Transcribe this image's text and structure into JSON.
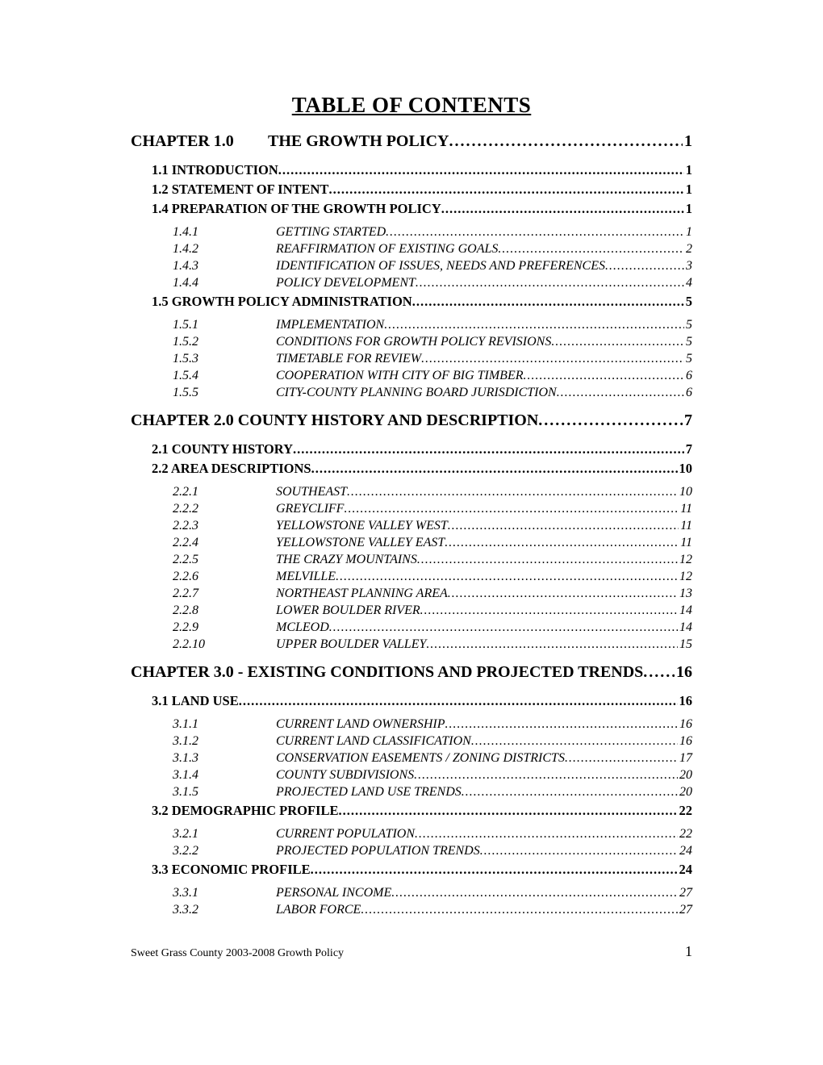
{
  "title": "TABLE OF CONTENTS",
  "footer": {
    "text": "Sweet Grass County 2003-2008 Growth Policy",
    "page": "1"
  },
  "ch1": {
    "num": "CHAPTER 1.0",
    "label": "THE GROWTH POLICY ",
    "page": " 1",
    "s11": {
      "label": "1.1 INTRODUCTION",
      "page": "1"
    },
    "s12": {
      "label": "1.2 STATEMENT OF INTENT",
      "page": "1"
    },
    "s14": {
      "label": "1.4 PREPARATION OF THE GROWTH POLICY ",
      "page": "1"
    },
    "s14subs": [
      {
        "num": "1.4.1",
        "label": "GETTING STARTED ",
        "page": "1"
      },
      {
        "num": "1.4.2",
        "label": "REAFFIRMATION OF EXISTING GOALS",
        "page": "2"
      },
      {
        "num": "1.4.3",
        "label": "IDENTIFICATION OF ISSUES,  NEEDS AND PREFERENCES",
        "page": "3"
      },
      {
        "num": "1.4.4",
        "label": "POLICY DEVELOPMENT",
        "page": "4"
      }
    ],
    "s15": {
      "label": "1.5 GROWTH POLICY ADMINISTRATION",
      "page": "5"
    },
    "s15subs": [
      {
        "num": "1.5.1",
        "label": "IMPLEMENTATION",
        "page": "5"
      },
      {
        "num": "1.5.2",
        "label": "CONDITIONS FOR GROWTH POLICY REVISIONS ",
        "page": "5"
      },
      {
        "num": "1.5.3",
        "label": "TIMETABLE FOR REVIEW",
        "page": "5"
      },
      {
        "num": "1.5.4",
        "label": "COOPERATION WITH CITY OF BIG TIMBER ",
        "page": "6"
      },
      {
        "num": "1.5.5",
        "label": "CITY-COUNTY PLANNING BOARD JURISDICTION ",
        "page": "6"
      }
    ]
  },
  "ch2": {
    "label": "CHAPTER 2.0 COUNTY HISTORY AND DESCRIPTION ",
    "page": " 7",
    "s21": {
      "label": "2.1 COUNTY HISTORY",
      "page": "7"
    },
    "s22": {
      "label": "2.2 AREA DESCRIPTIONS",
      "page": "10"
    },
    "s22subs": [
      {
        "num": "2.2.1",
        "label": "SOUTHEAST",
        "page": "10"
      },
      {
        "num": "2.2.2",
        "label": "GREYCLIFF",
        "page": "11"
      },
      {
        "num": "2.2.3",
        "label": "YELLOWSTONE VALLEY WEST",
        "page": "11"
      },
      {
        "num": "2.2.4",
        "label": "YELLOWSTONE VALLEY EAST",
        "page": "11"
      },
      {
        "num": "2.2.5",
        "label": "THE CRAZY MOUNTAINS ",
        "page": "12"
      },
      {
        "num": "2.2.6",
        "label": "MELVILLE",
        "page": "12"
      },
      {
        "num": "2.2.7",
        "label": "NORTHEAST PLANNING AREA",
        "page": "13"
      },
      {
        "num": "2.2.8",
        "label": "LOWER BOULDER RIVER",
        "page": "14"
      },
      {
        "num": "2.2.9",
        "label": "MCLEOD ",
        "page": "14"
      },
      {
        "num": "2.2.10",
        "label": "UPPER BOULDER VALLEY ",
        "page": "15"
      }
    ]
  },
  "ch3": {
    "label": "CHAPTER 3.0 - EXISTING CONDITIONS AND PROJECTED TRENDS ",
    "page": " 16",
    "s31": {
      "label": "3.1 LAND USE",
      "page": "16"
    },
    "s31subs": [
      {
        "num": "3.1.1",
        "label": "CURRENT LAND OWNERSHIP",
        "page": "16"
      },
      {
        "num": "3.1.2",
        "label": "CURRENT LAND CLASSIFICATION",
        "page": "16"
      },
      {
        "num": "3.1.3",
        "label": "CONSERVATION EASEMENTS / ZONING DISTRICTS ",
        "page": "17"
      },
      {
        "num": "3.1.4",
        "label": "COUNTY SUBDIVISIONS",
        "page": "20"
      },
      {
        "num": "3.1.5",
        "label": "PROJECTED LAND USE TRENDS ",
        "page": "20"
      }
    ],
    "s32": {
      "label": "3.2 DEMOGRAPHIC PROFILE",
      "page": "22"
    },
    "s32subs": [
      {
        "num": "3.2.1",
        "label": "CURRENT POPULATION",
        "page": "22"
      },
      {
        "num": "3.2.2",
        "label": "PROJECTED POPULATION TRENDS ",
        "page": "24"
      }
    ],
    "s33": {
      "label": "3.3 ECONOMIC PROFILE",
      "page": "24"
    },
    "s33subs": [
      {
        "num": "3.3.1",
        "label": "PERSONAL INCOME",
        "page": "27"
      },
      {
        "num": "3.3.2",
        "label": "LABOR FORCE",
        "page": "27"
      }
    ]
  }
}
